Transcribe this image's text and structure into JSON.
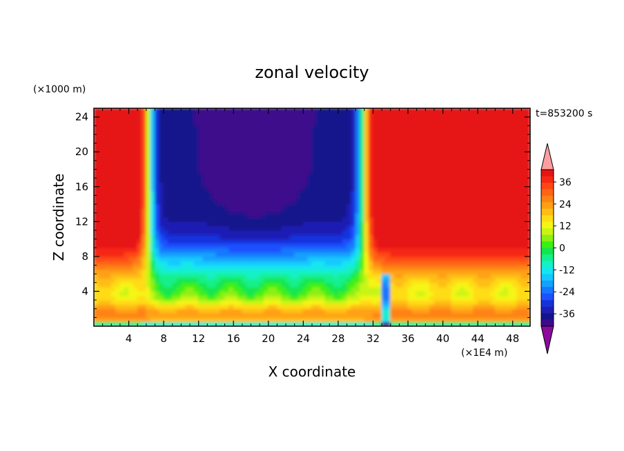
{
  "chart_data": {
    "type": "heatmap",
    "title": "zonal velocity",
    "xlabel": "X coordinate",
    "ylabel": "Z coordinate",
    "x_unit": "(×1E4 m)",
    "y_unit": "(×1000 m)",
    "time_label": "t=853200 s",
    "xlim": [
      0,
      50
    ],
    "ylim": [
      0,
      25
    ],
    "x_ticks": [
      4,
      8,
      12,
      16,
      20,
      24,
      28,
      32,
      36,
      40,
      44,
      48
    ],
    "y_ticks": [
      4,
      8,
      12,
      16,
      20,
      24
    ],
    "colorbar": {
      "levels": [
        -42,
        -39,
        -36,
        -33,
        -30,
        -27,
        -24,
        -21,
        -18,
        -15,
        -12,
        -9,
        -6,
        -3,
        0,
        3,
        6,
        9,
        12,
        15,
        18,
        21,
        24,
        27,
        30,
        33,
        36,
        39,
        42
      ],
      "tick_labels": [
        36,
        24,
        12,
        0,
        -12,
        -24,
        -36
      ],
      "colors": [
        "#8a0a9c",
        "#3c0a8c",
        "#14148c",
        "#1e1eb4",
        "#1432dc",
        "#1e50ff",
        "#1478ff",
        "#14a0ff",
        "#14c8ff",
        "#14e6f0",
        "#14f0c8",
        "#14f08c",
        "#14e650",
        "#3cf014",
        "#8cf014",
        "#c8f514",
        "#f5f514",
        "#ffdc14",
        "#ffbe14",
        "#ffa014",
        "#ff8214",
        "#ff6414",
        "#ff4614",
        "#f52814",
        "#e61414",
        "#ff9ea0"
      ]
    },
    "field_description_values_ms": {
      "upper_left_lobe_x_0_6": 40,
      "jet_x_6_31_upper": -40,
      "upper_right_lobe_x_33_50": 40,
      "near_surface_band_z_1_3": 15,
      "mid_transition_z_5_9": 0
    }
  }
}
